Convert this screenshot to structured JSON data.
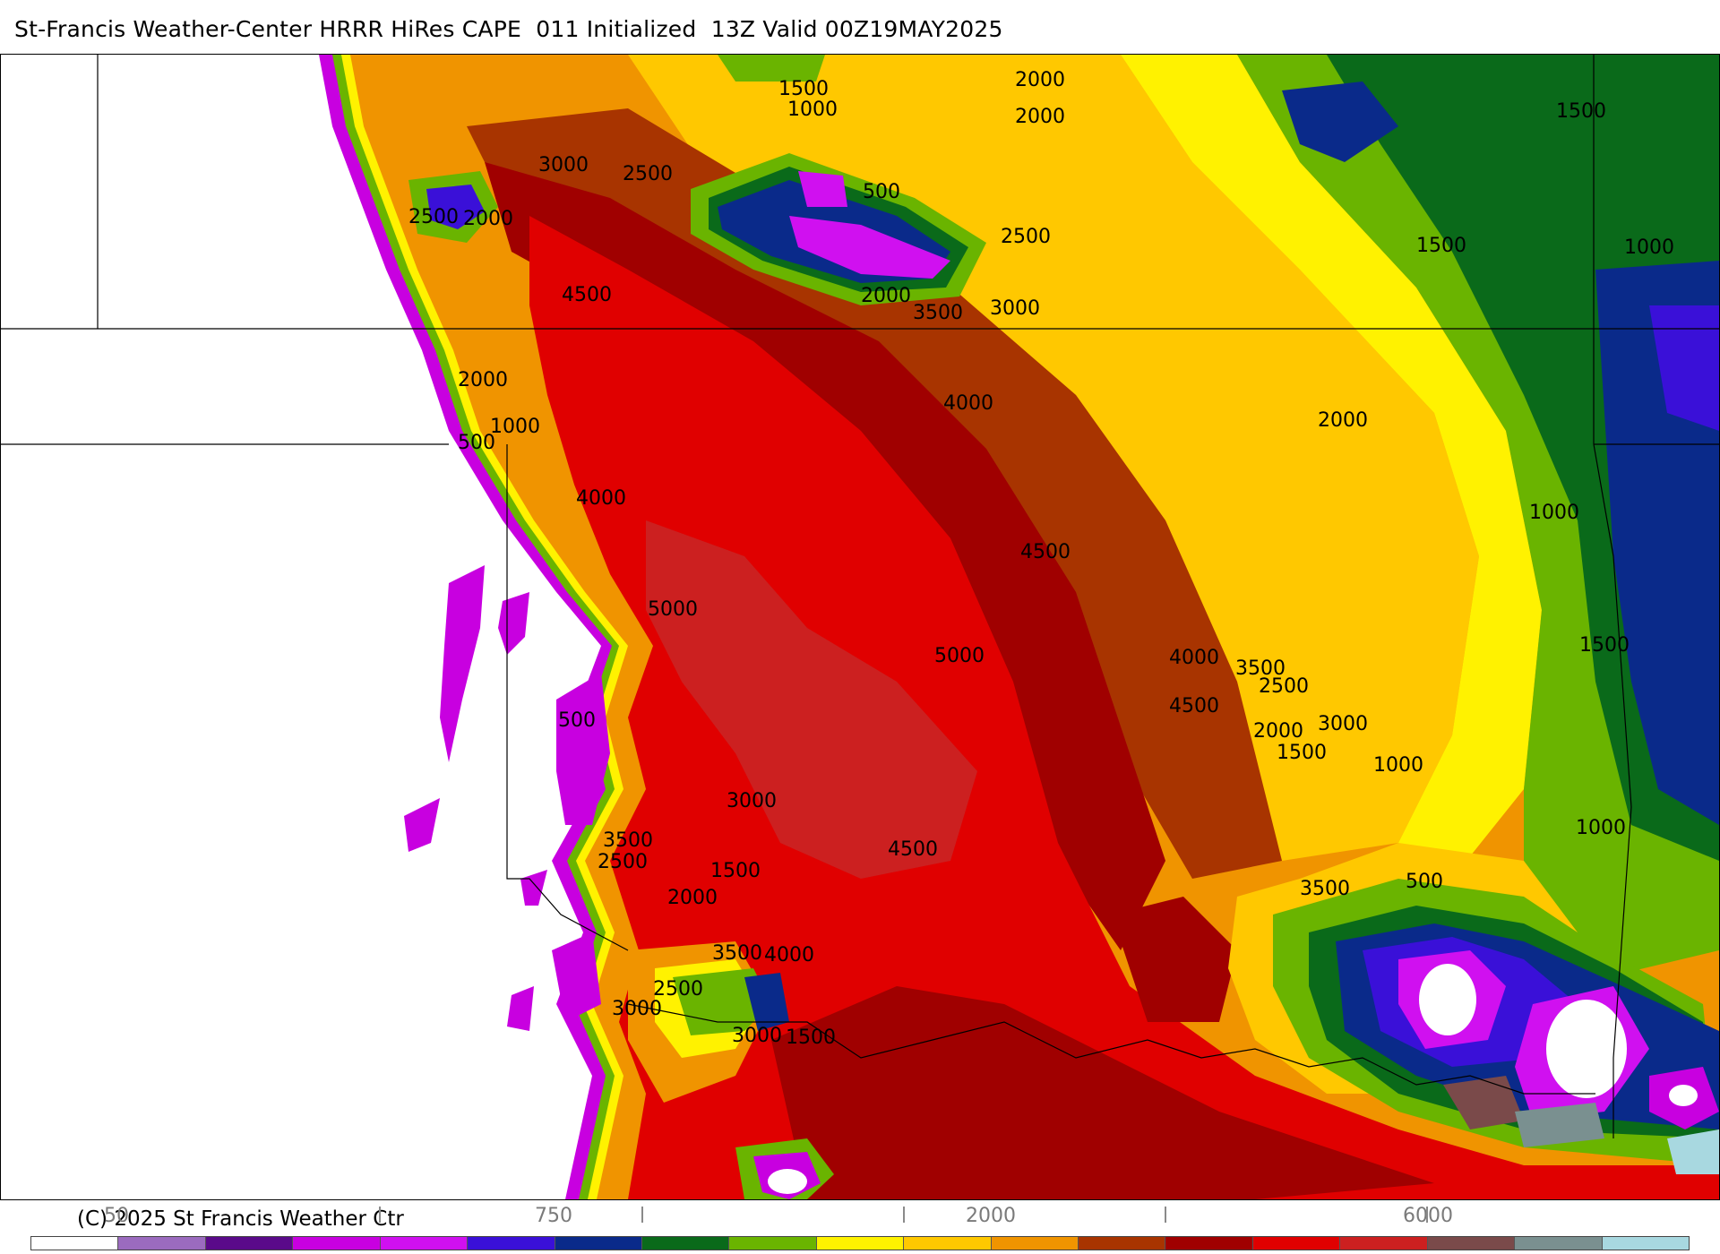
{
  "title": "St-Francis Weather-Center HRRR HiRes CAPE  011 Initialized  13Z Valid 00Z19MAY2025",
  "copyright": "(C) 2025 St Francis Weather Ctr",
  "colors": {
    "white": "#ffffff",
    "lavender": "#9b6bbf",
    "purple_dark": "#5a0a8a",
    "magenta": "#c800e0",
    "violet": "#d010f0",
    "blue": "#3a10d8",
    "navy": "#0a2a8a",
    "green_dark": "#0a6a1a",
    "green": "#6ab400",
    "yellow": "#fff200",
    "gold": "#ffc800",
    "orange": "#f09400",
    "rust": "#a83400",
    "maroon": "#a00000",
    "red": "#e00000",
    "red_light": "#cc2020",
    "mauve": "#7a4a4a",
    "gray": "#7a9090",
    "light_blue": "#a8d8e0"
  },
  "colorbar": {
    "labels": [
      {
        "text": "50"
      },
      {
        "text": "750"
      },
      {
        "text": "2000"
      },
      {
        "text": "6000"
      }
    ],
    "segments": [
      "#ffffff",
      "#9b6bbf",
      "#5a0a8a",
      "#c800e0",
      "#d010f0",
      "#3a10d8",
      "#0a2a8a",
      "#0a6a1a",
      "#6ab400",
      "#fff200",
      "#ffc800",
      "#f09400",
      "#a83400",
      "#a00000",
      "#e00000",
      "#cc2020",
      "#7a4a4a",
      "#7a9090",
      "#a8d8e0"
    ]
  },
  "contour_labels": [
    "1500",
    "1000",
    "2000",
    "1500",
    "500",
    "2500",
    "3000",
    "2500",
    "2500",
    "2000",
    "1500",
    "1000",
    "4500",
    "2000",
    "3500",
    "3000",
    "2000",
    "1000",
    "500",
    "2000",
    "4000",
    "2000",
    "4000",
    "4500",
    "1000",
    "5000",
    "5000",
    "4000",
    "3500",
    "1500",
    "2500",
    "4500",
    "2000",
    "3000",
    "1500",
    "1000",
    "500",
    "3000",
    "3500",
    "2500",
    "1500",
    "4500",
    "2000",
    "500",
    "1000",
    "3500",
    "3500",
    "4000",
    "2500",
    "3000",
    "3000",
    "1500"
  ]
}
